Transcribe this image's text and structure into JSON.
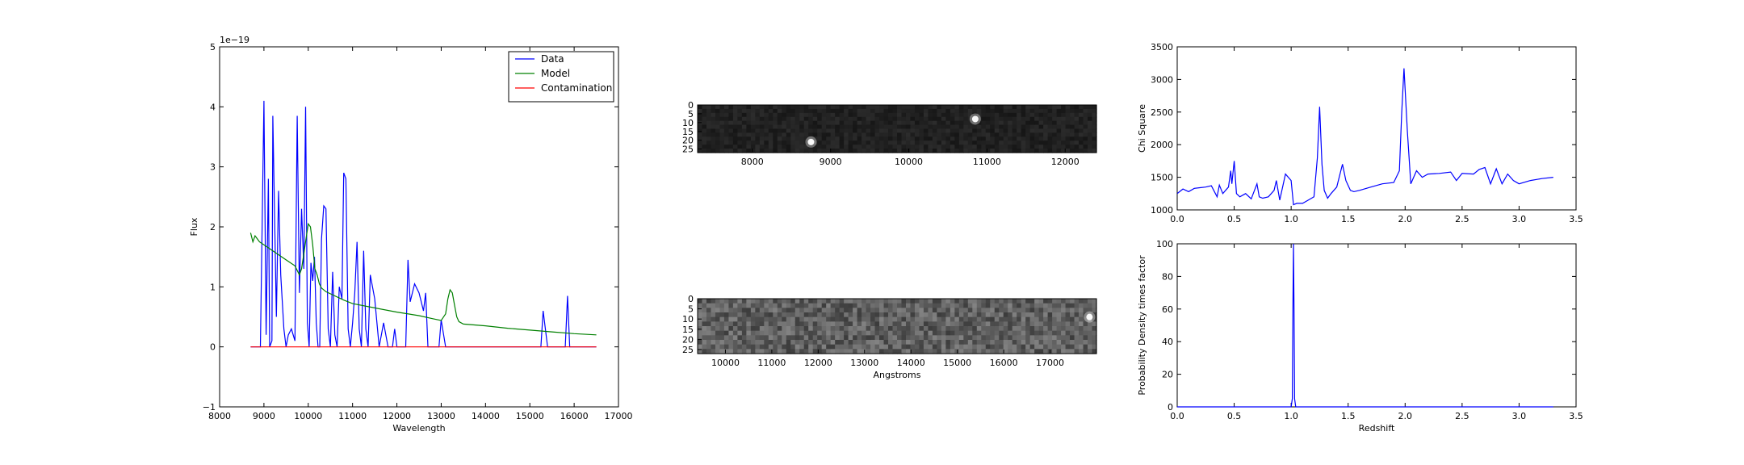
{
  "chart_data": [
    {
      "id": "spectrum",
      "type": "line",
      "xlabel": "Wavelength",
      "ylabel": "Flux",
      "offset_text": "1e−19",
      "xlim": [
        8000,
        17000
      ],
      "ylim": [
        -1,
        5
      ],
      "xticks": [
        8000,
        9000,
        10000,
        11000,
        12000,
        13000,
        14000,
        15000,
        16000,
        17000
      ],
      "yticks": [
        -1,
        0,
        1,
        2,
        3,
        4,
        5
      ],
      "ytick_labels": [
        "−1",
        "0",
        "1",
        "2",
        "3",
        "4",
        "5"
      ],
      "legend": {
        "placement": "top-right"
      },
      "series": [
        {
          "name": "Data",
          "color": "#0000ff",
          "x": [
            8700,
            8850,
            8920,
            9000,
            9050,
            9100,
            9130,
            9180,
            9200,
            9280,
            9330,
            9380,
            9450,
            9500,
            9550,
            9620,
            9700,
            9750,
            9800,
            9850,
            9900,
            9940,
            9980,
            10020,
            10060,
            10100,
            10140,
            10180,
            10220,
            10260,
            10300,
            10350,
            10400,
            10450,
            10500,
            10550,
            10600,
            10650,
            10700,
            10760,
            10800,
            10850,
            10900,
            10950,
            11000,
            11050,
            11100,
            11150,
            11200,
            11250,
            11300,
            11350,
            11400,
            11500,
            11600,
            11700,
            11800,
            11850,
            11900,
            11950,
            12000,
            12100,
            12200,
            12250,
            12300,
            12400,
            12500,
            12600,
            12650,
            12700,
            12750,
            12800,
            12850,
            12900,
            12950,
            13000,
            13100,
            13500,
            14000,
            14500,
            14900,
            14950,
            15000,
            15100,
            15200,
            15250,
            15300,
            15400,
            15500,
            15550,
            15600,
            15650,
            15700,
            15750,
            15800,
            15850,
            15900,
            16000,
            16500
          ],
          "y": [
            0,
            0,
            0,
            4.1,
            0.2,
            2.8,
            0,
            0.1,
            3.85,
            0.5,
            2.6,
            1.2,
            0.3,
            0,
            0.2,
            0.3,
            0.1,
            3.85,
            0.9,
            2.3,
            1.3,
            4.0,
            0.4,
            0,
            1.4,
            1.1,
            1.5,
            0.4,
            0,
            0,
            1.8,
            2.35,
            2.3,
            0.3,
            0,
            1.25,
            0.2,
            0,
            1.0,
            0.8,
            2.9,
            2.8,
            0.3,
            0,
            0.4,
            0.9,
            1.75,
            0.3,
            0,
            1.6,
            0.3,
            0,
            1.2,
            0.8,
            0,
            0.4,
            0,
            0,
            0,
            0.3,
            0,
            0,
            0,
            1.45,
            0.75,
            1.05,
            0.9,
            0.6,
            0.9,
            0,
            0,
            0,
            0,
            0,
            0,
            0.45,
            0,
            0,
            0,
            0,
            0,
            0,
            0,
            0,
            0,
            0,
            0.6,
            0,
            0,
            0,
            0,
            0,
            0,
            0,
            0,
            0.85,
            0,
            0,
            0
          ]
        },
        {
          "name": "Model",
          "color": "#008000",
          "x": [
            8700,
            8750,
            8800,
            8850,
            8900,
            9000,
            9200,
            9500,
            9700,
            9800,
            9850,
            9900,
            9950,
            10000,
            10050,
            10100,
            10150,
            10200,
            10250,
            10300,
            10400,
            10600,
            10800,
            11000,
            11500,
            12000,
            12500,
            12800,
            13000,
            13100,
            13150,
            13200,
            13250,
            13300,
            13350,
            13400,
            13500,
            14000,
            14500,
            15000,
            15500,
            16000,
            16500
          ],
          "y": [
            1.9,
            1.75,
            1.85,
            1.8,
            1.75,
            1.7,
            1.6,
            1.45,
            1.35,
            1.2,
            1.3,
            1.55,
            1.8,
            2.05,
            2.0,
            1.7,
            1.3,
            1.2,
            1.05,
            0.98,
            0.92,
            0.85,
            0.78,
            0.72,
            0.65,
            0.58,
            0.52,
            0.47,
            0.44,
            0.55,
            0.8,
            0.95,
            0.9,
            0.7,
            0.5,
            0.42,
            0.38,
            0.35,
            0.31,
            0.28,
            0.25,
            0.22,
            0.2
          ]
        },
        {
          "name": "Contamination",
          "color": "#ff0000",
          "x": [
            8700,
            16500
          ],
          "y": [
            0,
            0
          ]
        }
      ]
    },
    {
      "id": "image-top",
      "type": "heatmap",
      "xlim": [
        7300,
        12400
      ],
      "ylim": [
        0,
        27
      ],
      "xticks": [
        8000,
        9000,
        10000,
        11000,
        12000
      ],
      "yticks": [
        0,
        5,
        10,
        15,
        20,
        25
      ],
      "bright_spots": [
        {
          "x": 8750,
          "y": 21
        },
        {
          "x": 10850,
          "y": 8
        }
      ]
    },
    {
      "id": "image-bottom",
      "type": "heatmap",
      "xlabel": "Angstroms",
      "xlim": [
        9400,
        18000
      ],
      "ylim": [
        0,
        27
      ],
      "xticks": [
        10000,
        11000,
        12000,
        13000,
        14000,
        15000,
        16000,
        17000
      ],
      "yticks": [
        0,
        5,
        10,
        15,
        20,
        25
      ],
      "bright_spots": [
        {
          "x": 17850,
          "y": 9
        }
      ]
    },
    {
      "id": "chi-square",
      "type": "line",
      "ylabel": "Chi Square",
      "xlim": [
        0,
        3.5
      ],
      "ylim": [
        1000,
        3500
      ],
      "xticks": [
        0.0,
        0.5,
        1.0,
        1.5,
        2.0,
        2.5,
        3.0,
        3.5
      ],
      "xtick_labels": [
        "0.0",
        "0.5",
        "1.0",
        "1.5",
        "2.0",
        "2.5",
        "3.0",
        "3.5"
      ],
      "yticks": [
        1000,
        1500,
        2000,
        2500,
        3000,
        3500
      ],
      "series": [
        {
          "color": "#0000ff",
          "x": [
            0.0,
            0.05,
            0.1,
            0.15,
            0.2,
            0.25,
            0.3,
            0.35,
            0.37,
            0.4,
            0.45,
            0.47,
            0.48,
            0.5,
            0.52,
            0.55,
            0.6,
            0.65,
            0.7,
            0.72,
            0.75,
            0.8,
            0.85,
            0.87,
            0.9,
            0.95,
            1.0,
            1.02,
            1.05,
            1.1,
            1.15,
            1.2,
            1.23,
            1.25,
            1.27,
            1.29,
            1.32,
            1.35,
            1.4,
            1.45,
            1.48,
            1.52,
            1.55,
            1.6,
            1.7,
            1.8,
            1.9,
            1.95,
            1.97,
            1.99,
            2.02,
            2.05,
            2.1,
            2.15,
            2.2,
            2.3,
            2.4,
            2.45,
            2.5,
            2.6,
            2.65,
            2.7,
            2.75,
            2.8,
            2.85,
            2.9,
            2.95,
            3.0,
            3.1,
            3.2,
            3.3
          ],
          "y": [
            1250,
            1320,
            1280,
            1330,
            1340,
            1350,
            1370,
            1200,
            1380,
            1250,
            1350,
            1600,
            1400,
            1750,
            1250,
            1200,
            1250,
            1170,
            1400,
            1200,
            1180,
            1200,
            1300,
            1450,
            1150,
            1550,
            1450,
            1080,
            1100,
            1100,
            1150,
            1200,
            1800,
            2580,
            1700,
            1300,
            1180,
            1250,
            1350,
            1700,
            1450,
            1300,
            1280,
            1300,
            1350,
            1400,
            1420,
            1600,
            2500,
            3170,
            2200,
            1400,
            1600,
            1500,
            1550,
            1560,
            1580,
            1450,
            1560,
            1550,
            1620,
            1650,
            1400,
            1630,
            1400,
            1550,
            1450,
            1400,
            1450,
            1480,
            1500
          ]
        }
      ]
    },
    {
      "id": "probability",
      "type": "line",
      "xlabel": "Redshift",
      "ylabel": "Probability Density times factor",
      "xlim": [
        0,
        3.5
      ],
      "ylim": [
        0,
        100
      ],
      "xticks": [
        0.0,
        0.5,
        1.0,
        1.5,
        2.0,
        2.5,
        3.0,
        3.5
      ],
      "xtick_labels": [
        "0.0",
        "0.5",
        "1.0",
        "1.5",
        "2.0",
        "2.5",
        "3.0",
        "3.5"
      ],
      "yticks": [
        0,
        20,
        40,
        60,
        80,
        100
      ],
      "series": [
        {
          "color": "#0000ff",
          "x": [
            0.0,
            1.0,
            1.01,
            1.015,
            1.02,
            1.025,
            1.03,
            1.04,
            3.3
          ],
          "y": [
            0,
            0,
            5,
            60,
            100,
            60,
            5,
            0,
            0
          ]
        }
      ]
    }
  ]
}
